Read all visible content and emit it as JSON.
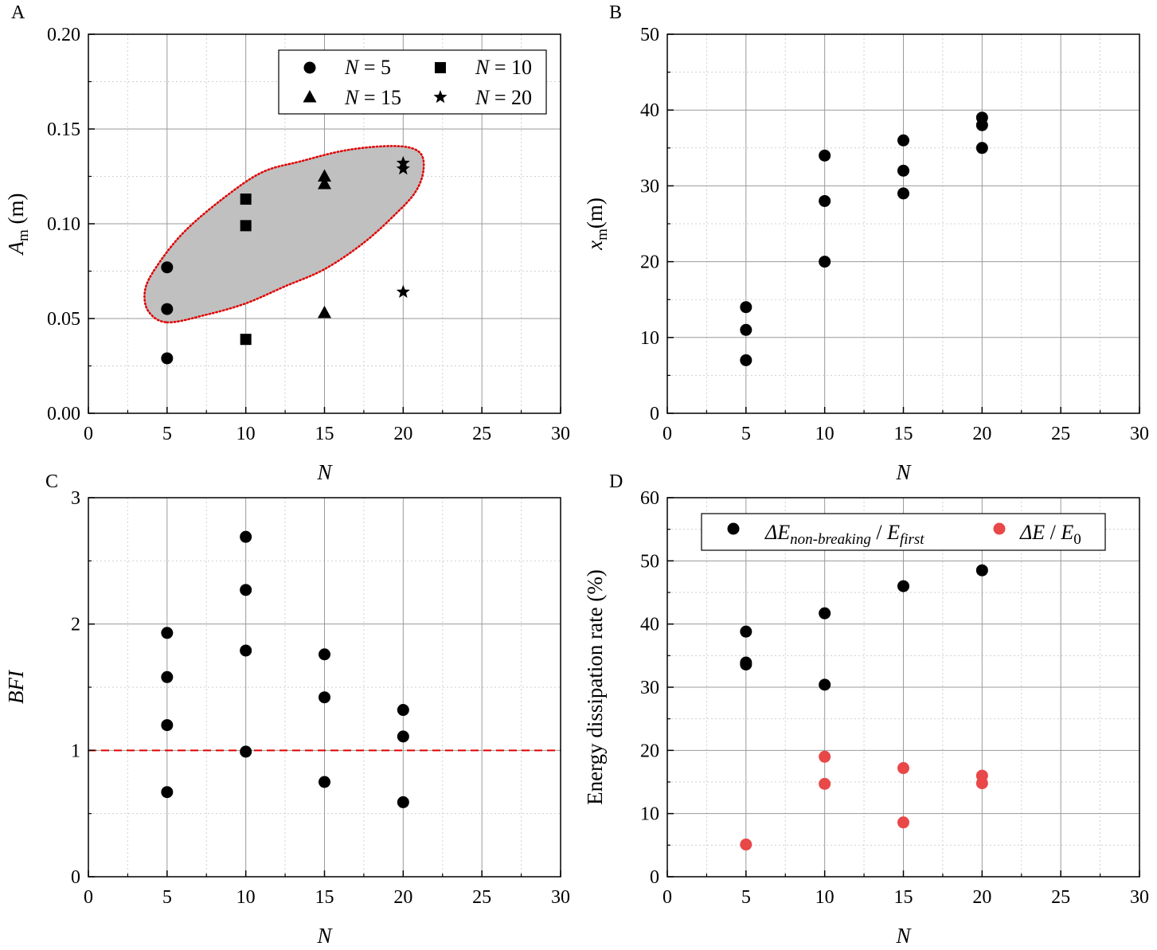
{
  "chart_data": [
    {
      "panel": "A",
      "type": "scatter",
      "xlabel": "N",
      "ylabel": "A",
      "ylabel_sub": "m",
      "ylabel_unit": " (m)",
      "xlim": [
        0,
        30
      ],
      "ylim": [
        0,
        0.2
      ],
      "xticks": [
        "0",
        "5",
        "10",
        "15",
        "20",
        "25",
        "30"
      ],
      "yticks": [
        "0.00",
        "0.05",
        "0.10",
        "0.15",
        "0.20"
      ],
      "grid": true,
      "legend_position": "top-right",
      "series": [
        {
          "name": "N = 5",
          "legend_var": "N",
          "legend_rest": " = 5",
          "marker": "circle",
          "x": [
            5,
            5,
            5
          ],
          "y": [
            0.077,
            0.055,
            0.029
          ]
        },
        {
          "name": "N = 10",
          "legend_var": "N",
          "legend_rest": " = 10",
          "marker": "square",
          "x": [
            10,
            10,
            10
          ],
          "y": [
            0.113,
            0.099,
            0.039
          ]
        },
        {
          "name": "N = 15",
          "legend_var": "N",
          "legend_rest": " = 15",
          "marker": "triangle",
          "x": [
            15,
            15,
            15
          ],
          "y": [
            0.125,
            0.121,
            0.053
          ]
        },
        {
          "name": "N = 20",
          "legend_var": "N",
          "legend_rest": " = 20",
          "marker": "star",
          "x": [
            20,
            20,
            20
          ],
          "y": [
            0.132,
            0.129,
            0.064
          ]
        }
      ],
      "shaded_region": {
        "fill": "#c0c0c0",
        "stroke": "#e00000"
      }
    },
    {
      "panel": "B",
      "type": "scatter",
      "xlabel": "N",
      "ylabel": "x",
      "ylabel_sub": "m",
      "ylabel_unit": "(m)",
      "xlim": [
        0,
        30
      ],
      "ylim": [
        0,
        50
      ],
      "xticks": [
        "0",
        "5",
        "10",
        "15",
        "20",
        "25",
        "30"
      ],
      "yticks": [
        "0",
        "10",
        "20",
        "30",
        "40",
        "50"
      ],
      "grid": true,
      "series": [
        {
          "marker": "circle",
          "x": [
            5,
            5,
            5,
            10,
            10,
            10,
            15,
            15,
            15,
            20,
            20,
            20
          ],
          "y": [
            14,
            11,
            7,
            34,
            28,
            20,
            36,
            32,
            29,
            39,
            38,
            35
          ]
        }
      ]
    },
    {
      "panel": "C",
      "type": "scatter",
      "xlabel": "N",
      "ylabel": "BFI",
      "xlim": [
        0,
        30
      ],
      "ylim": [
        0,
        3
      ],
      "xticks": [
        "0",
        "5",
        "10",
        "15",
        "20",
        "25",
        "30"
      ],
      "yticks": [
        "0",
        "1",
        "2",
        "3"
      ],
      "grid": true,
      "reference_line": {
        "y": 1,
        "style": "dashed",
        "color": "#e00000"
      },
      "series": [
        {
          "marker": "circle",
          "x": [
            5,
            5,
            5,
            5,
            10,
            10,
            10,
            10,
            15,
            15,
            15,
            20,
            20,
            20
          ],
          "y": [
            1.93,
            1.58,
            1.2,
            0.67,
            2.69,
            2.27,
            1.79,
            0.99,
            1.76,
            1.42,
            0.75,
            1.32,
            1.11,
            0.59
          ]
        }
      ]
    },
    {
      "panel": "D",
      "type": "scatter",
      "xlabel": "N",
      "ylabel": "Energy dissipation rate (%)",
      "xlim": [
        0,
        30
      ],
      "ylim": [
        0,
        60
      ],
      "xticks": [
        "0",
        "5",
        "10",
        "15",
        "20",
        "25",
        "30"
      ],
      "yticks": [
        "0",
        "10",
        "20",
        "30",
        "40",
        "50",
        "60"
      ],
      "grid": true,
      "legend_position": "top",
      "series": [
        {
          "name": "ΔEnon-breaking / Efirst",
          "legend_parts": [
            "ΔE",
            "non-breaking",
            " / ",
            "E",
            "first"
          ],
          "marker": "circle",
          "color": "#000000",
          "x": [
            5,
            5,
            5,
            10,
            10,
            15,
            20
          ],
          "y": [
            38.8,
            33.9,
            33.6,
            41.7,
            30.4,
            46,
            48.5
          ]
        },
        {
          "name": "ΔE / E0",
          "legend_parts": [
            "ΔE",
            "",
            " / ",
            "E",
            "0"
          ],
          "marker": "circle",
          "color": "#e84848",
          "x": [
            5,
            10,
            10,
            15,
            15,
            20,
            20
          ],
          "y": [
            5.1,
            19,
            14.7,
            17.2,
            8.6,
            16,
            14.8
          ]
        }
      ]
    }
  ]
}
